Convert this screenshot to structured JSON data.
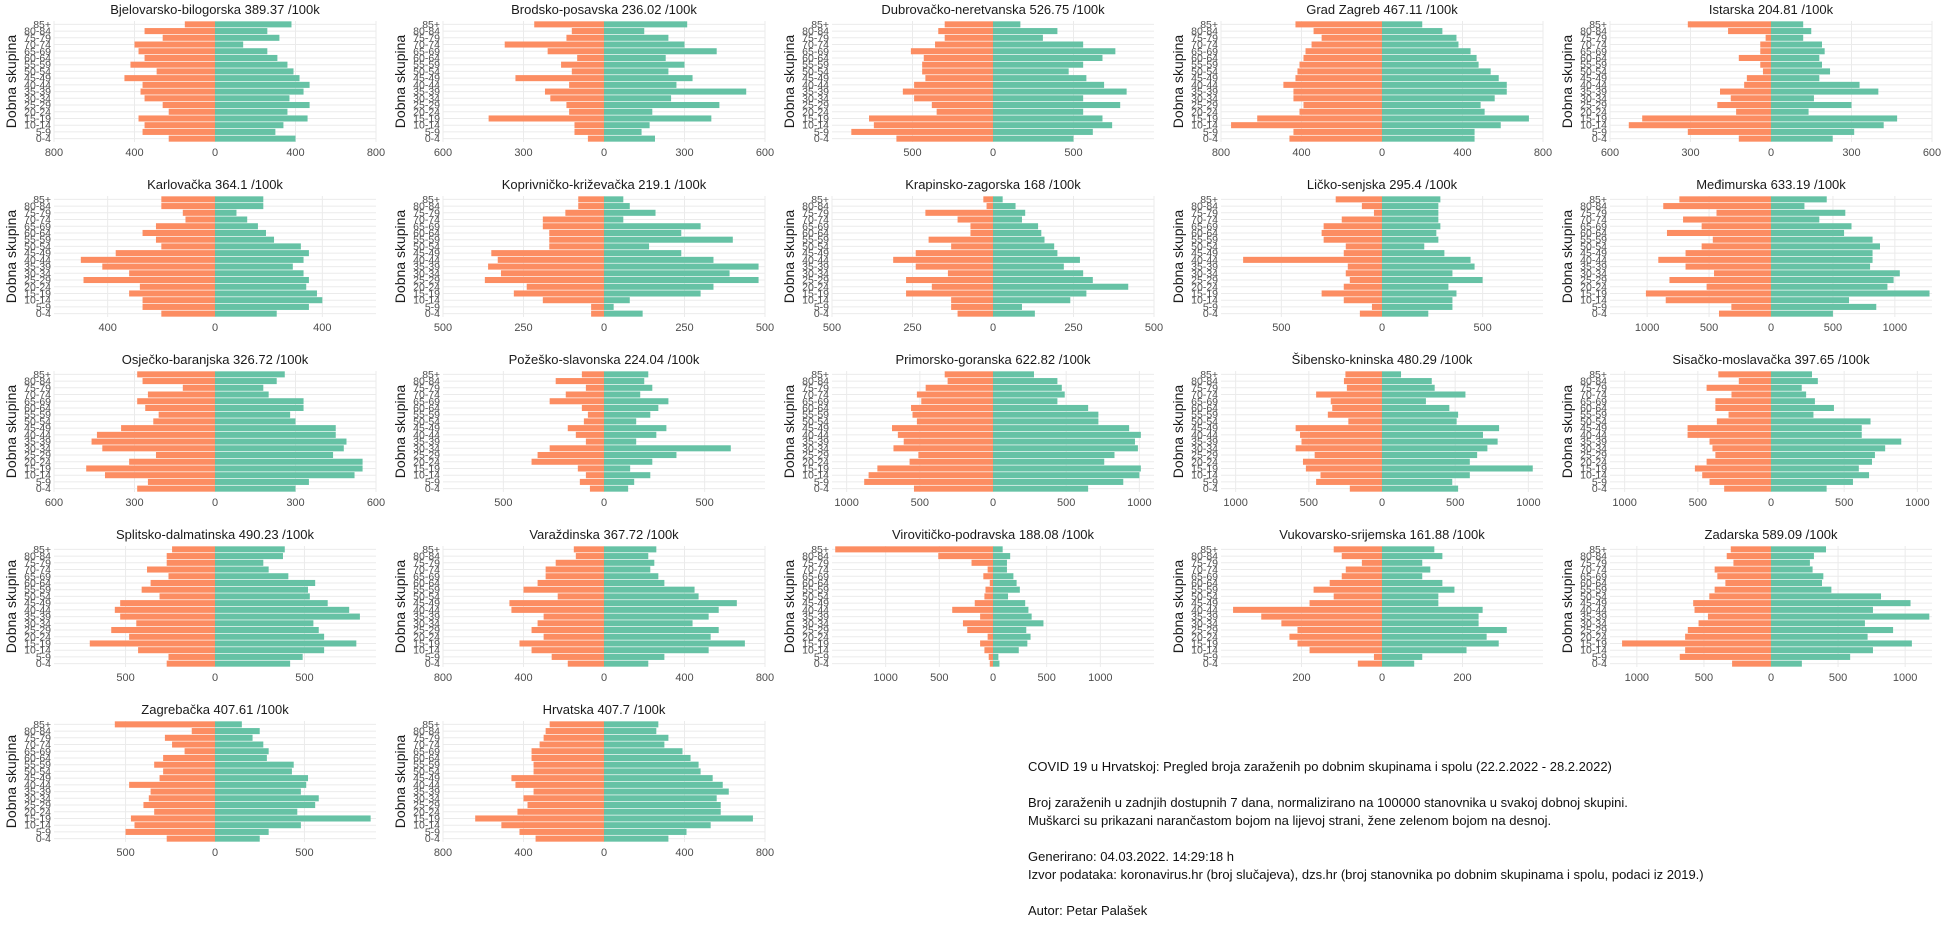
{
  "colors": {
    "male": "#FC8D62",
    "female": "#66C2A5"
  },
  "chart_data": {
    "type": "bar",
    "orientation": "horizontal-population-pyramid",
    "y_label": "Dobna skupina",
    "age_groups": [
      "0-4",
      "5-9",
      "10-14",
      "15-19",
      "20-24",
      "25-29",
      "30-34",
      "35-39",
      "40-44",
      "45-49",
      "50-54",
      "55-59",
      "60-64",
      "65-69",
      "70-74",
      "75-79",
      "80-84",
      "85+"
    ],
    "series_names": [
      "Muškarci",
      "Žene"
    ],
    "panels": [
      {
        "title": "Bjelovarsko-bilogorska 389.37 /100k",
        "xticks": [
          800,
          400,
          0,
          400,
          800
        ],
        "xmax": 800,
        "male": [
          230,
          360,
          350,
          380,
          230,
          260,
          350,
          370,
          360,
          450,
          290,
          420,
          350,
          380,
          400,
          260,
          350,
          150
        ],
        "female": [
          400,
          300,
          340,
          460,
          360,
          470,
          370,
          440,
          470,
          420,
          390,
          360,
          310,
          260,
          140,
          320,
          260,
          380
        ]
      },
      {
        "title": "Brodsko-posavska 236.02 /100k",
        "xticks": [
          600,
          300,
          0,
          300,
          600
        ],
        "xmax": 600,
        "male": [
          60,
          110,
          110,
          430,
          130,
          140,
          200,
          220,
          130,
          330,
          120,
          160,
          100,
          210,
          370,
          140,
          120,
          260
        ],
        "female": [
          190,
          140,
          170,
          400,
          180,
          430,
          250,
          530,
          270,
          330,
          240,
          300,
          230,
          420,
          300,
          240,
          150,
          310
        ]
      },
      {
        "title": "Dubrovačko-neretvanska 526.75 /100k",
        "xticks": [
          500,
          0,
          500
        ],
        "xmax": 1000,
        "male": [
          600,
          880,
          740,
          770,
          350,
          380,
          490,
          560,
          490,
          420,
          440,
          440,
          430,
          510,
          360,
          300,
          340,
          300
        ],
        "female": [
          500,
          620,
          740,
          680,
          560,
          790,
          560,
          830,
          690,
          580,
          470,
          560,
          680,
          760,
          560,
          310,
          400,
          170
        ]
      },
      {
        "title": "Grad Zagreb 467.11 /100k",
        "xticks": [
          800,
          400,
          0,
          400,
          800
        ],
        "xmax": 800,
        "male": [
          460,
          440,
          750,
          620,
          410,
          390,
          440,
          440,
          490,
          430,
          420,
          410,
          390,
          380,
          350,
          300,
          340,
          430
        ],
        "female": [
          460,
          460,
          590,
          730,
          510,
          490,
          560,
          620,
          620,
          580,
          540,
          480,
          470,
          440,
          380,
          370,
          300,
          200
        ]
      },
      {
        "title": "Istarska 204.81 /100k",
        "xticks": [
          600,
          300,
          0,
          300,
          600
        ],
        "xmax": 600,
        "male": [
          120,
          310,
          530,
          480,
          130,
          200,
          150,
          190,
          100,
          90,
          30,
          40,
          120,
          40,
          40,
          20,
          160,
          310
        ],
        "female": [
          230,
          310,
          420,
          470,
          140,
          300,
          160,
          400,
          330,
          180,
          220,
          190,
          180,
          200,
          190,
          120,
          150,
          120
        ]
      },
      {
        "title": "Karlovačka 364.1 /100k",
        "xticks": [
          400,
          0,
          400
        ],
        "xmax": 600,
        "male": [
          200,
          270,
          270,
          320,
          280,
          490,
          320,
          420,
          500,
          370,
          200,
          220,
          270,
          220,
          110,
          120,
          200,
          200
        ],
        "female": [
          230,
          350,
          400,
          380,
          340,
          350,
          330,
          290,
          330,
          350,
          320,
          220,
          190,
          160,
          120,
          80,
          180,
          180
        ]
      },
      {
        "title": "Koprivničko-križevačka 219.1 /100k",
        "xticks": [
          500,
          250,
          0,
          250,
          500
        ],
        "xmax": 500,
        "male": [
          40,
          40,
          190,
          280,
          240,
          370,
          320,
          360,
          330,
          350,
          170,
          170,
          170,
          190,
          190,
          120,
          80,
          80
        ],
        "female": [
          120,
          30,
          80,
          300,
          340,
          480,
          390,
          480,
          340,
          240,
          140,
          400,
          240,
          300,
          60,
          160,
          80,
          60
        ]
      },
      {
        "title": "Krapinsko-zagorska 168 /100k",
        "xticks": [
          500,
          250,
          0,
          250,
          500
        ],
        "xmax": 500,
        "male": [
          110,
          130,
          130,
          270,
          190,
          270,
          140,
          240,
          310,
          240,
          130,
          200,
          70,
          70,
          110,
          210,
          20,
          30
        ],
        "female": [
          130,
          90,
          240,
          290,
          420,
          310,
          280,
          220,
          270,
          200,
          190,
          160,
          150,
          140,
          90,
          100,
          70,
          30
        ]
      },
      {
        "title": "Ličko-senjska 295.4 /100k",
        "xticks": [
          500,
          0,
          500
        ],
        "xmax": 800,
        "male": [
          110,
          50,
          190,
          300,
          190,
          160,
          180,
          170,
          690,
          190,
          180,
          290,
          300,
          290,
          200,
          40,
          100,
          230
        ],
        "female": [
          230,
          350,
          350,
          370,
          330,
          500,
          350,
          460,
          440,
          310,
          210,
          280,
          270,
          290,
          280,
          280,
          280,
          290
        ]
      },
      {
        "title": "Međimurska 633.19 /100k",
        "xticks": [
          1000,
          500,
          0,
          500,
          1000
        ],
        "xmax": 1300,
        "male": [
          420,
          320,
          850,
          1010,
          520,
          820,
          460,
          690,
          910,
          690,
          560,
          470,
          840,
          560,
          710,
          440,
          870,
          740
        ],
        "female": [
          500,
          850,
          630,
          1280,
          940,
          990,
          1040,
          800,
          820,
          820,
          880,
          820,
          590,
          650,
          390,
          600,
          270,
          450
        ]
      },
      {
        "title": "Osječko-baranjska 326.72 /100k",
        "xticks": [
          600,
          300,
          0,
          300,
          600
        ],
        "xmax": 600,
        "male": [
          290,
          250,
          410,
          480,
          320,
          220,
          420,
          460,
          440,
          350,
          230,
          210,
          260,
          290,
          250,
          120,
          270,
          290
        ],
        "female": [
          300,
          350,
          520,
          550,
          550,
          440,
          480,
          490,
          450,
          450,
          300,
          280,
          330,
          330,
          200,
          180,
          230,
          260
        ]
      },
      {
        "title": "Požeško-slavonska 224.04 /100k",
        "xticks": [
          500,
          0,
          500
        ],
        "xmax": 800,
        "male": [
          70,
          120,
          90,
          130,
          360,
          330,
          270,
          90,
          140,
          180,
          100,
          80,
          110,
          270,
          190,
          90,
          240,
          110
        ],
        "female": [
          120,
          150,
          230,
          130,
          240,
          360,
          630,
          160,
          260,
          310,
          160,
          230,
          270,
          320,
          180,
          240,
          200,
          220
        ]
      },
      {
        "title": "Primorsko-goranska 622.82 /100k",
        "xticks": [
          1000,
          500,
          0,
          500,
          1000
        ],
        "xmax": 1100,
        "male": [
          540,
          880,
          850,
          790,
          570,
          510,
          680,
          610,
          650,
          690,
          520,
          550,
          560,
          490,
          520,
          460,
          310,
          330
        ],
        "female": [
          650,
          890,
          1000,
          1010,
          760,
          830,
          990,
          970,
          1010,
          930,
          720,
          720,
          650,
          440,
          490,
          470,
          440,
          280
        ]
      },
      {
        "title": "Šibensko-kninska 480.29 /100k",
        "xticks": [
          1000,
          500,
          0,
          500,
          1000
        ],
        "xmax": 1100,
        "male": [
          220,
          450,
          420,
          520,
          540,
          460,
          590,
          550,
          560,
          590,
          230,
          370,
          340,
          350,
          450,
          240,
          260,
          250
        ],
        "female": [
          520,
          480,
          600,
          1030,
          600,
          650,
          720,
          790,
          690,
          800,
          510,
          520,
          460,
          300,
          570,
          360,
          340,
          130
        ]
      },
      {
        "title": "Sisačko-moslavačka 397.65 /100k",
        "xticks": [
          1000,
          500,
          0,
          500,
          1000
        ],
        "xmax": 1100,
        "male": [
          320,
          420,
          470,
          520,
          440,
          380,
          400,
          420,
          570,
          570,
          370,
          290,
          380,
          380,
          270,
          440,
          220,
          360
        ],
        "female": [
          380,
          560,
          670,
          600,
          690,
          710,
          780,
          890,
          620,
          620,
          680,
          290,
          430,
          300,
          240,
          210,
          320,
          280
        ]
      },
      {
        "title": "Splitsko-dalmatinska 490.23 /100k",
        "xticks": [
          500,
          0,
          500
        ],
        "xmax": 900,
        "male": [
          270,
          260,
          430,
          700,
          480,
          580,
          440,
          530,
          560,
          530,
          310,
          410,
          360,
          260,
          380,
          270,
          270,
          240
        ],
        "female": [
          420,
          490,
          610,
          790,
          610,
          580,
          550,
          810,
          750,
          630,
          530,
          520,
          560,
          410,
          300,
          270,
          380,
          390
        ]
      },
      {
        "title": "Varaždinska 367.72 /100k",
        "xticks": [
          800,
          400,
          0,
          400,
          800
        ],
        "xmax": 800,
        "male": [
          180,
          260,
          360,
          420,
          300,
          360,
          330,
          300,
          460,
          470,
          230,
          400,
          330,
          290,
          290,
          240,
          140,
          150
        ],
        "female": [
          220,
          300,
          520,
          700,
          530,
          570,
          440,
          520,
          570,
          660,
          470,
          450,
          300,
          270,
          230,
          250,
          220,
          260
        ]
      },
      {
        "title": "Virovitičko-podravska 188.08 /100k",
        "xticks": [
          1000,
          500,
          0,
          500,
          1000
        ],
        "xmax": 1500,
        "male": [
          30,
          40,
          80,
          120,
          50,
          240,
          280,
          120,
          380,
          170,
          80,
          70,
          30,
          90,
          50,
          200,
          510,
          1470
        ],
        "female": [
          60,
          50,
          240,
          320,
          350,
          310,
          470,
          360,
          330,
          300,
          140,
          250,
          220,
          190,
          130,
          130,
          160,
          90
        ]
      },
      {
        "title": "Vukovarsko-srijemska 161.88 /100k",
        "xticks": [
          200,
          0,
          200
        ],
        "xmax": 400,
        "male": [
          60,
          20,
          180,
          210,
          230,
          210,
          250,
          300,
          370,
          180,
          120,
          170,
          130,
          100,
          90,
          50,
          100,
          120
        ],
        "female": [
          80,
          100,
          210,
          290,
          260,
          310,
          240,
          240,
          250,
          140,
          140,
          180,
          150,
          100,
          120,
          100,
          150,
          130
        ]
      },
      {
        "title": "Zadarska 589.09 /100k",
        "xticks": [
          1000,
          500,
          0,
          500,
          1000
        ],
        "xmax": 1200,
        "male": [
          290,
          680,
          640,
          1110,
          640,
          620,
          540,
          470,
          570,
          580,
          460,
          420,
          340,
          400,
          420,
          280,
          330,
          300
        ],
        "female": [
          230,
          590,
          760,
          1050,
          720,
          910,
          700,
          1180,
          760,
          1040,
          820,
          450,
          380,
          390,
          310,
          290,
          320,
          410
        ]
      },
      {
        "title": "Zagrebačka 407.61 /100k",
        "xticks": [
          500,
          0,
          500
        ],
        "xmax": 900,
        "male": [
          270,
          500,
          450,
          470,
          340,
          400,
          370,
          360,
          480,
          310,
          290,
          340,
          290,
          170,
          240,
          280,
          130,
          560
        ],
        "female": [
          250,
          300,
          480,
          870,
          460,
          560,
          580,
          480,
          510,
          520,
          430,
          440,
          290,
          300,
          270,
          210,
          250,
          150
        ]
      },
      {
        "title": "Hrvatska 407.7 /100k",
        "xticks": [
          800,
          400,
          0,
          400,
          800
        ],
        "xmax": 800,
        "male": [
          340,
          420,
          510,
          640,
          430,
          380,
          400,
          350,
          440,
          460,
          350,
          350,
          360,
          360,
          320,
          300,
          290,
          270
        ],
        "female": [
          320,
          410,
          530,
          740,
          580,
          580,
          560,
          620,
          590,
          540,
          480,
          470,
          430,
          390,
          300,
          320,
          260,
          270
        ]
      }
    ]
  },
  "caption": {
    "title": "COVID 19 u Hrvatskoj: Pregled broja zaraženih po dobnim skupinama i spolu (22.2.2022 - 28.2.2022)",
    "desc1": "Broj zaraženih u zadnjih dostupnih 7 dana, normalizirano na 100000 stanovnika u svakoj dobnoj skupini.",
    "desc2": "Muškarci su prikazani narančastom bojom na lijevoj strani, žene zelenom bojom na desnoj.",
    "generated": "Generirano: 04.03.2022. 14:29:18 h",
    "source": "Izvor podataka: koronavirus.hr (broj slučajeva), dzs.hr (broj stanovnika po dobnim skupinama i spolu, podaci iz 2019.)",
    "author": "Autor: Petar Palašek"
  }
}
